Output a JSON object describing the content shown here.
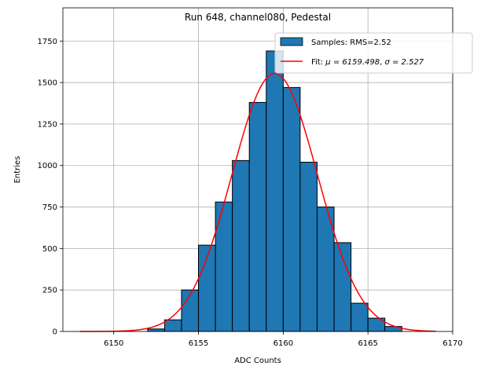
{
  "chart_data": {
    "type": "bar",
    "title": "Run 648, channel080, Pedestal",
    "xlabel": "ADC Counts",
    "ylabel": "Entries",
    "xlim": [
      6147,
      6170
    ],
    "ylim": [
      0,
      1950
    ],
    "xticks": [
      6150,
      6155,
      6160,
      6165,
      6170
    ],
    "yticks": [
      0,
      250,
      500,
      750,
      1000,
      1250,
      1500,
      1750
    ],
    "grid": true,
    "legend_position": "top-right",
    "histogram": {
      "name": "Samples: RMS=2.52",
      "color": "#1f77b4",
      "bin_width": 1,
      "bins": [
        {
          "left": 6152,
          "count": 15
        },
        {
          "left": 6153,
          "count": 70
        },
        {
          "left": 6154,
          "count": 250
        },
        {
          "left": 6155,
          "count": 520
        },
        {
          "left": 6156,
          "count": 780
        },
        {
          "left": 6157,
          "count": 1030
        },
        {
          "left": 6158,
          "count": 1380
        },
        {
          "left": 6159,
          "count": 1690
        },
        {
          "left": 6160,
          "count": 1470
        },
        {
          "left": 6161,
          "count": 1020
        },
        {
          "left": 6162,
          "count": 750
        },
        {
          "left": 6163,
          "count": 535
        },
        {
          "left": 6164,
          "count": 170
        },
        {
          "left": 6165,
          "count": 80
        },
        {
          "left": 6166,
          "count": 30
        }
      ]
    },
    "fit": {
      "name": "Fit: μ = 6159.498, σ = 2.527",
      "label_prefix": "Fit: ",
      "mu_label": "μ = 6159.498",
      "sigma_label": "σ = 2.527",
      "color": "#ff0000",
      "mu": 6159.498,
      "sigma": 2.527,
      "amplitude": 1555,
      "x_range": [
        6148,
        6169
      ]
    }
  }
}
